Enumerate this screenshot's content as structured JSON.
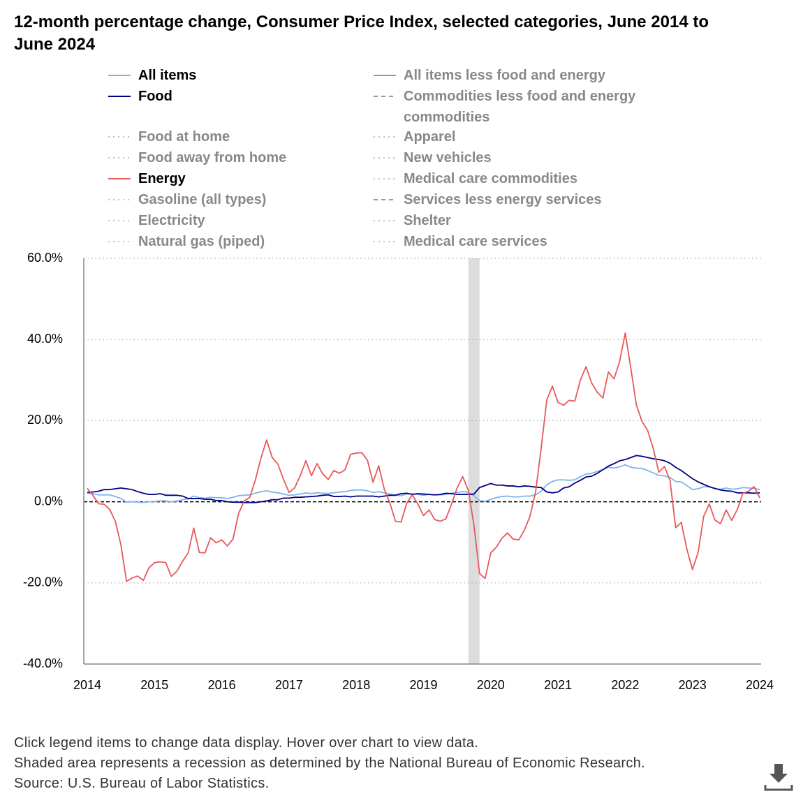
{
  "chart_data": {
    "type": "line",
    "title": "12-month percentage change, Consumer Price Index, selected categories, June 2014 to June 2024",
    "notes": [
      "Click legend items to change data display. Hover over chart to view data.",
      "Shaded area represents a recession as determined by the National Bureau of Economic Research.",
      "Source: U.S. Bureau of Labor Statistics."
    ],
    "categories": [
      "2014",
      null,
      null,
      null,
      null,
      null,
      null,
      null,
      null,
      null,
      null,
      null,
      "2015",
      null,
      null,
      null,
      null,
      null,
      null,
      null,
      null,
      null,
      null,
      null,
      "2016",
      null,
      null,
      null,
      null,
      null,
      null,
      null,
      null,
      null,
      null,
      null,
      "2017",
      null,
      null,
      null,
      null,
      null,
      null,
      null,
      null,
      null,
      null,
      null,
      "2018",
      null,
      null,
      null,
      null,
      null,
      null,
      null,
      null,
      null,
      null,
      null,
      "2019",
      null,
      null,
      null,
      null,
      null,
      null,
      null,
      null,
      null,
      null,
      null,
      "2020",
      null,
      null,
      null,
      null,
      null,
      null,
      null,
      null,
      null,
      null,
      null,
      "2021",
      null,
      null,
      null,
      null,
      null,
      null,
      null,
      null,
      null,
      null,
      null,
      "2022",
      null,
      null,
      null,
      null,
      null,
      null,
      null,
      null,
      null,
      null,
      null,
      "2023",
      null,
      null,
      null,
      null,
      null,
      null,
      null,
      null,
      null,
      null,
      null,
      "2024"
    ],
    "recession": [
      68,
      70
    ],
    "ylim": [
      -40,
      60
    ],
    "yticks": [
      {
        "value": -40,
        "label": "-40.0%"
      },
      {
        "value": -20,
        "label": "-20.0%"
      },
      {
        "value": 0,
        "label": "0.0%"
      },
      {
        "value": 20,
        "label": "20.0%"
      },
      {
        "value": 40,
        "label": "40.0%"
      },
      {
        "value": 60,
        "label": "60.0%"
      }
    ],
    "grid": true,
    "series": [
      {
        "name": "All items",
        "color": "#7cb5ec",
        "dash": "solid",
        "visible": true,
        "values": [
          2.1,
          2.0,
          1.7,
          1.7,
          1.7,
          1.3,
          0.8,
          -0.1,
          0.0,
          -0.1,
          -0.2,
          0.0,
          0.1,
          0.2,
          0.2,
          0.0,
          0.2,
          0.5,
          0.7,
          1.4,
          1.0,
          0.9,
          1.1,
          1.0,
          1.0,
          0.8,
          1.1,
          1.5,
          1.6,
          1.7,
          2.1,
          2.5,
          2.7,
          2.4,
          2.2,
          1.9,
          1.6,
          1.7,
          1.9,
          2.2,
          2.0,
          2.2,
          2.1,
          2.1,
          2.2,
          2.4,
          2.5,
          2.8,
          2.9,
          2.9,
          2.7,
          2.3,
          2.5,
          2.2,
          1.9,
          1.6,
          1.5,
          1.9,
          2.0,
          1.8,
          1.6,
          1.8,
          1.7,
          1.7,
          1.8,
          2.1,
          2.3,
          2.5,
          2.3,
          1.5,
          0.3,
          0.1,
          0.6,
          1.0,
          1.3,
          1.4,
          1.2,
          1.2,
          1.4,
          1.4,
          1.7,
          2.6,
          4.2,
          5.0,
          5.4,
          5.4,
          5.3,
          5.4,
          6.2,
          6.8,
          7.0,
          7.5,
          7.9,
          8.5,
          8.3,
          8.6,
          9.1,
          8.5,
          8.3,
          8.2,
          7.7,
          7.1,
          6.5,
          6.4,
          6.0,
          5.0,
          4.9,
          4.0,
          3.0,
          3.2,
          3.7,
          3.7,
          3.2,
          3.1,
          3.4,
          3.1,
          3.2,
          3.5,
          3.4,
          3.3,
          3.0
        ]
      },
      {
        "name": "All items less food and energy",
        "color": "#999999",
        "dash": "solid",
        "visible": false
      },
      {
        "name": "Food",
        "color": "#000080",
        "dash": "solid",
        "visible": true,
        "values": [
          2.3,
          2.4,
          2.6,
          3.0,
          3.0,
          3.2,
          3.4,
          3.2,
          3.0,
          2.5,
          2.1,
          1.8,
          1.8,
          2.0,
          1.6,
          1.6,
          1.6,
          1.4,
          0.8,
          0.8,
          0.8,
          0.6,
          0.6,
          0.3,
          0.3,
          0.0,
          -0.1,
          -0.1,
          -0.2,
          -0.2,
          -0.2,
          0.0,
          0.2,
          0.5,
          0.5,
          0.9,
          0.9,
          1.1,
          1.1,
          1.2,
          1.3,
          1.4,
          1.6,
          1.7,
          1.3,
          1.3,
          1.4,
          1.2,
          1.4,
          1.4,
          1.4,
          1.4,
          1.2,
          1.4,
          1.6,
          1.6,
          2.0,
          2.1,
          1.8,
          2.0,
          1.9,
          1.8,
          1.7,
          1.8,
          2.1,
          2.0,
          1.8,
          1.8,
          1.8,
          1.9,
          3.5,
          4.0,
          4.5,
          4.1,
          4.1,
          3.9,
          3.9,
          3.7,
          3.9,
          3.8,
          3.6,
          3.5,
          2.4,
          2.2,
          2.4,
          3.4,
          3.7,
          4.6,
          5.3,
          6.1,
          6.3,
          7.0,
          7.9,
          8.8,
          9.4,
          10.1,
          10.4,
          10.9,
          11.4,
          11.2,
          10.9,
          10.6,
          10.4,
          10.1,
          9.5,
          8.5,
          7.7,
          6.7,
          5.7,
          4.9,
          4.3,
          3.7,
          3.3,
          2.9,
          2.7,
          2.6,
          2.2,
          2.2,
          2.2,
          2.1,
          2.2
        ]
      },
      {
        "name": "Commodities less food and energy commodities",
        "color": "#999999",
        "dash": "dash",
        "visible": false
      },
      {
        "name": "Food at home",
        "color": "#999999",
        "dash": "dot",
        "visible": false
      },
      {
        "name": "Apparel",
        "color": "#999999",
        "dash": "dot",
        "visible": false
      },
      {
        "name": "Food away from home",
        "color": "#999999",
        "dash": "dot",
        "visible": false
      },
      {
        "name": "New vehicles",
        "color": "#999999",
        "dash": "dot",
        "visible": false
      },
      {
        "name": "Energy",
        "color": "#e8585a",
        "dash": "solid",
        "visible": true,
        "values": [
          3.3,
          1.6,
          -0.5,
          -0.6,
          -1.9,
          -4.8,
          -10.6,
          -19.6,
          -18.8,
          -18.3,
          -19.4,
          -16.3,
          -15.0,
          -14.8,
          -15.0,
          -18.4,
          -17.1,
          -14.7,
          -12.6,
          -6.5,
          -12.5,
          -12.6,
          -8.9,
          -10.1,
          -9.4,
          -10.9,
          -9.2,
          -2.9,
          0.2,
          1.1,
          5.4,
          10.8,
          15.2,
          10.9,
          9.3,
          5.6,
          2.3,
          3.4,
          6.4,
          10.1,
          6.4,
          9.4,
          6.9,
          5.5,
          7.7,
          7.0,
          7.9,
          11.7,
          12.0,
          12.1,
          10.2,
          4.8,
          8.9,
          3.1,
          -0.3,
          -4.8,
          -5.0,
          -0.4,
          1.7,
          -0.6,
          -3.4,
          -2.0,
          -4.4,
          -4.8,
          -4.2,
          -0.6,
          3.4,
          6.2,
          2.8,
          -5.7,
          -17.7,
          -18.9,
          -12.6,
          -11.2,
          -9.0,
          -7.7,
          -9.2,
          -9.4,
          -7.0,
          -3.6,
          2.4,
          13.2,
          25.1,
          28.5,
          24.5,
          23.8,
          25.0,
          24.8,
          30.0,
          33.3,
          29.3,
          27.0,
          25.6,
          32.0,
          30.3,
          34.6,
          41.6,
          32.9,
          23.8,
          19.8,
          17.6,
          13.1,
          7.3,
          8.7,
          5.2,
          -6.4,
          -5.1,
          -11.7,
          -16.7,
          -12.5,
          -3.6,
          -0.5,
          -4.5,
          -5.4,
          -2.0,
          -4.6,
          -1.9,
          2.1,
          2.6,
          3.7,
          1.0
        ]
      },
      {
        "name": "Medical care commodities",
        "color": "#999999",
        "dash": "dot",
        "visible": false
      },
      {
        "name": "Gasoline (all types)",
        "color": "#999999",
        "dash": "dot",
        "visible": false
      },
      {
        "name": "Services less energy services",
        "color": "#999999",
        "dash": "dash",
        "visible": false
      },
      {
        "name": "Electricity",
        "color": "#999999",
        "dash": "dot",
        "visible": false
      },
      {
        "name": "Shelter",
        "color": "#999999",
        "dash": "dot",
        "visible": false
      },
      {
        "name": "Natural gas (piped)",
        "color": "#999999",
        "dash": "dot",
        "visible": false
      },
      {
        "name": "Medical care services",
        "color": "#999999",
        "dash": "dot",
        "visible": false
      }
    ]
  }
}
